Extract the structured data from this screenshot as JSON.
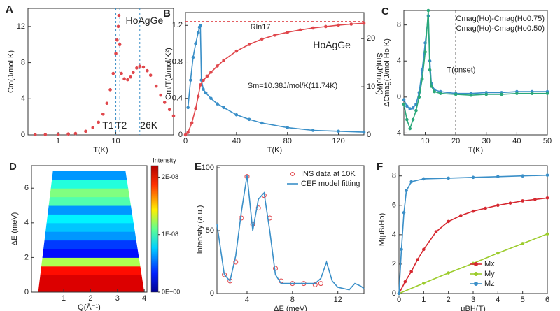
{
  "chart_data": [
    {
      "type": "line",
      "panel": "A",
      "xlog": true,
      "xlim": [
        0.3,
        100
      ],
      "xticks": [
        1,
        10
      ],
      "ylim": [
        0,
        14
      ],
      "yticks": [
        0,
        4,
        8,
        12
      ],
      "x_label": "T(K)",
      "y_label": "Cm(J/mol K)",
      "annotations": [
        "HoAgGe",
        "T1",
        "T2",
        "26K"
      ],
      "vlines": [
        10,
        11.7,
        26
      ],
      "series": [
        {
          "name": "HoAgGe",
          "color": "#e0474c",
          "marker": "circle",
          "line": false,
          "x": [
            0.4,
            0.6,
            1,
            1.5,
            2,
            3,
            4,
            5,
            6,
            7,
            8,
            9,
            10,
            10.5,
            11,
            11.3,
            11.7,
            12.5,
            14,
            16,
            18,
            20,
            23,
            26,
            30,
            35,
            40,
            50,
            60,
            70,
            85,
            100
          ],
          "values": [
            0.02,
            0.03,
            0.06,
            0.1,
            0.15,
            0.4,
            0.8,
            1.4,
            2.3,
            3.5,
            5,
            6.8,
            9,
            10.5,
            12,
            13.2,
            10,
            6.8,
            6.2,
            6.1,
            6.4,
            6.9,
            7.4,
            7.6,
            7.5,
            7.1,
            6.6,
            5.4,
            4.4,
            3.6,
            2.8,
            2.1
          ]
        }
      ]
    },
    {
      "type": "line",
      "panel": "B",
      "xlim": [
        0,
        140
      ],
      "xticks": [
        0,
        40,
        80,
        120
      ],
      "ylim": [
        0,
        1.34
      ],
      "yticks": [
        0,
        0.4,
        0.8,
        1.2
      ],
      "y2lim": [
        0,
        25.4
      ],
      "y2ticks": [
        0,
        10,
        20
      ],
      "x_label": "T(K)",
      "y_label": "Cm/T(J/mol/K²)",
      "y2_label": "Sm(J/mol/K)",
      "annotations": [
        "Rln17",
        "HoAgGe",
        "Sm=10.38J/mol/K(11.74K)"
      ],
      "hlines2": [
        23.56,
        10.38
      ],
      "series": [
        {
          "name": "Cm/T",
          "color": "#3a8fc8",
          "marker": "circle",
          "line": true,
          "x": [
            2,
            4,
            6,
            8,
            10,
            11,
            11.7,
            12.5,
            14,
            16,
            20,
            25,
            30,
            40,
            50,
            60,
            80,
            100,
            120,
            140
          ],
          "values": [
            0.3,
            0.6,
            0.85,
            1.0,
            1.12,
            1.18,
            1.2,
            0.6,
            0.5,
            0.46,
            0.4,
            0.34,
            0.3,
            0.22,
            0.17,
            0.13,
            0.08,
            0.05,
            0.04,
            0.03
          ]
        },
        {
          "name": "Sm",
          "color": "#e0474c",
          "marker": "circle",
          "line": true,
          "axis": "y2",
          "x": [
            0,
            2,
            5,
            8,
            10,
            11.7,
            14,
            17,
            20,
            25,
            30,
            40,
            50,
            60,
            70,
            80,
            90,
            100,
            110,
            120,
            130,
            140
          ],
          "values": [
            0,
            0.5,
            2.5,
            5.5,
            8,
            10.38,
            11.3,
            12.2,
            13,
            14.3,
            15.5,
            17.4,
            18.8,
            19.9,
            20.7,
            21.3,
            21.8,
            22.2,
            22.5,
            22.8,
            23,
            23.2
          ]
        }
      ]
    },
    {
      "type": "line",
      "panel": "C",
      "xlim": [
        3,
        50
      ],
      "xticks": [
        10,
        20,
        30,
        40,
        50
      ],
      "ylim": [
        -4.2,
        9.6
      ],
      "yticks": [
        -4,
        0,
        4,
        8
      ],
      "x_label": "T(K)",
      "y_label": "ΔCmag(J/mol Ho K)",
      "annotations": [
        "T(onset)"
      ],
      "vlines": [
        20
      ],
      "legend": "upper right",
      "series": [
        {
          "name": "Cmag(Ho)-Cmag(Ho0.75)",
          "color": "#3a8fc8",
          "marker": "circle",
          "line": true,
          "x": [
            3,
            4,
            5,
            6,
            7,
            8,
            9,
            10,
            11,
            11.5,
            12,
            13,
            15,
            20,
            25,
            30,
            35,
            40,
            45,
            50
          ],
          "values": [
            -0.3,
            -1,
            -1.3,
            -1.2,
            -0.8,
            0.5,
            3,
            6,
            9,
            4,
            1.5,
            0.8,
            0.6,
            0.4,
            0.4,
            0.5,
            0.5,
            0.6,
            0.6,
            0.6
          ]
        },
        {
          "name": "Cmag(Ho)-Cmag(Ho0.50)",
          "color": "#2aa87a",
          "marker": "circle",
          "line": true,
          "x": [
            3,
            4,
            5,
            6,
            7,
            8,
            9,
            10,
            11,
            11.5,
            12,
            13,
            15,
            20,
            25,
            30,
            35,
            40,
            45,
            50
          ],
          "values": [
            -0.8,
            -2.5,
            -3.5,
            -2.5,
            -1.5,
            0,
            2,
            5,
            9.6,
            3,
            1.2,
            0.6,
            0.4,
            0.3,
            0.2,
            0.3,
            0.3,
            0.4,
            0.4,
            0.4
          ]
        }
      ]
    },
    {
      "type": "heatmap",
      "panel": "D",
      "xlim": [
        -0.2,
        4.1
      ],
      "xticks": [
        1,
        2,
        3,
        4
      ],
      "ylim": [
        0,
        7.3
      ],
      "yticks": [
        0,
        2,
        4,
        6
      ],
      "x_label": "Q(Å⁻¹)",
      "y_label": "ΔE (meV)",
      "colorbar_label": "Intensity",
      "clim": [
        0,
        2.2e-08
      ],
      "colorbar_ticks": [
        {
          "value": 2e-08,
          "label": "2E-08"
        },
        {
          "value": 1e-08,
          "label": "1E-08"
        },
        {
          "value": 0,
          "label": "0E+00"
        }
      ],
      "y_edges": [
        0,
        0.5,
        1,
        1.5,
        2,
        2.5,
        3,
        3.5,
        4,
        4.5,
        5,
        5.5,
        6,
        6.5,
        7
      ],
      "values": [
        2e-08,
        2e-08,
        1.9e-08,
        1.2e-08,
        3e-09,
        4e-09,
        6e-09,
        7e-09,
        8e-09,
        6e-09,
        1e-08,
        1.1e-08,
        9e-09,
        6e-09
      ]
    },
    {
      "type": "line",
      "panel": "E",
      "xlim": [
        1.35,
        14.3
      ],
      "xticks": [
        4,
        8,
        12
      ],
      "ylim": [
        0,
        101.7
      ],
      "yticks": [
        0,
        50,
        100
      ],
      "x_label": "ΔE (meV)",
      "y_label": "Intensity (a.u.)",
      "legend": "upper right",
      "series": [
        {
          "name": "INS data at 10K",
          "color": "#e0474c",
          "marker": "open",
          "line": false,
          "x": [
            2,
            2.5,
            3,
            3.5,
            4,
            4.5,
            5,
            5.5,
            6,
            6.5,
            7,
            8,
            9,
            10,
            10.5
          ],
          "values": [
            15,
            10,
            25,
            60,
            93,
            55,
            68,
            78,
            60,
            20,
            10,
            8,
            8,
            7,
            8
          ]
        },
        {
          "name": "CEF model fitting",
          "color": "#3a8fc8",
          "line": true,
          "x": [
            1.35,
            2,
            2.5,
            3,
            3.5,
            4,
            4.5,
            5,
            5.5,
            6,
            6.5,
            7,
            8,
            9,
            10,
            10.5,
            11,
            11.5,
            12,
            13,
            13.5,
            14,
            14.3
          ],
          "values": [
            55,
            15,
            10,
            30,
            65,
            94,
            50,
            75,
            80,
            50,
            15,
            8,
            8,
            8,
            8,
            12,
            25,
            10,
            5,
            3,
            8,
            6,
            4
          ]
        }
      ]
    },
    {
      "type": "line",
      "panel": "F",
      "xlim": [
        0,
        6
      ],
      "xticks": [
        0,
        1,
        2,
        3,
        4,
        5,
        6
      ],
      "ylim": [
        0,
        8.7
      ],
      "yticks": [
        0,
        2,
        4,
        6,
        8
      ],
      "x_label": "μBH(T)",
      "y_label": "M(μB/Ho)",
      "legend": "lower right",
      "series": [
        {
          "name": "Mx",
          "color": "#d62830",
          "marker": "circle",
          "line": true,
          "x": [
            0,
            0.25,
            0.5,
            0.75,
            1,
            1.5,
            2,
            2.5,
            3,
            3.5,
            4,
            4.5,
            5,
            5.5,
            6
          ],
          "values": [
            0,
            0.8,
            1.5,
            2.3,
            3,
            4.2,
            4.9,
            5.3,
            5.6,
            5.8,
            6,
            6.15,
            6.3,
            6.4,
            6.5
          ]
        },
        {
          "name": "My",
          "color": "#9ccc2c",
          "marker": "circle",
          "line": true,
          "x": [
            0,
            1,
            2,
            3,
            4,
            5,
            6
          ],
          "values": [
            0,
            0.7,
            1.4,
            2.05,
            2.75,
            3.4,
            4.05
          ]
        },
        {
          "name": "Mz",
          "color": "#3a8fc8",
          "marker": "circle",
          "line": true,
          "x": [
            0,
            0.1,
            0.2,
            0.3,
            0.5,
            1,
            2,
            3,
            4,
            5,
            6
          ],
          "values": [
            0,
            3,
            5.5,
            7,
            7.6,
            7.8,
            7.85,
            7.9,
            7.95,
            8,
            8.05
          ]
        }
      ]
    }
  ]
}
